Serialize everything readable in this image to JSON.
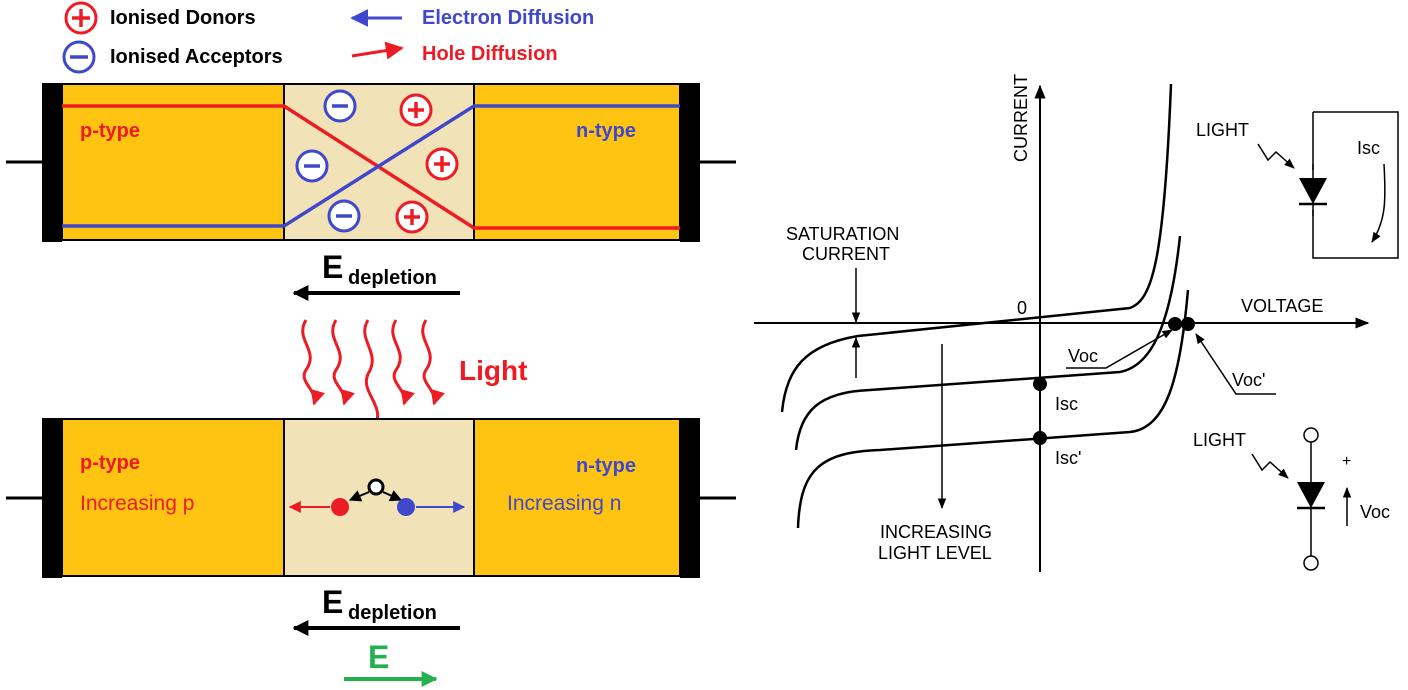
{
  "legend": {
    "donors": "Ionised Donors",
    "acceptors": "Ionised Acceptors",
    "electron_diffusion": "Electron Diffusion",
    "hole_diffusion": "Hole Diffusion"
  },
  "junction_top": {
    "p_label": "p-type",
    "n_label": "n-type"
  },
  "field_top": {
    "base": "E",
    "sub": "depletion"
  },
  "light_label": "Light",
  "junction_bottom": {
    "p_label": "p-type",
    "n_label": "n-type",
    "p_note": "Increasing p",
    "n_note": "Increasing n"
  },
  "field_bottom": {
    "base": "E",
    "sub": "depletion"
  },
  "field_e_label": "E",
  "iv_curve": {
    "y_axis_label": "CURRENT",
    "x_axis_label": "VOLTAGE",
    "origin_label": "0",
    "saturation_line1": "SATURATION",
    "saturation_line2": "CURRENT",
    "voc": "Voc",
    "voc_prime": "Voc'",
    "isc": "Isc",
    "isc_prime": "Isc'",
    "increasing_line1": "INCREASING",
    "increasing_line2": "LIGHT LEVEL",
    "inset_top_light": "LIGHT",
    "inset_top_isc": "Isc",
    "inset_bottom_light": "LIGHT",
    "inset_bottom_plus": "+",
    "inset_bottom_voc": "Voc"
  },
  "colors": {
    "semiconductor": "#ffc412",
    "depletion": "#f2e2b8",
    "hole_red": "#ed1c24",
    "electron_blue": "#3f48cc",
    "field_green": "#22b14c",
    "ink": "#000000"
  }
}
